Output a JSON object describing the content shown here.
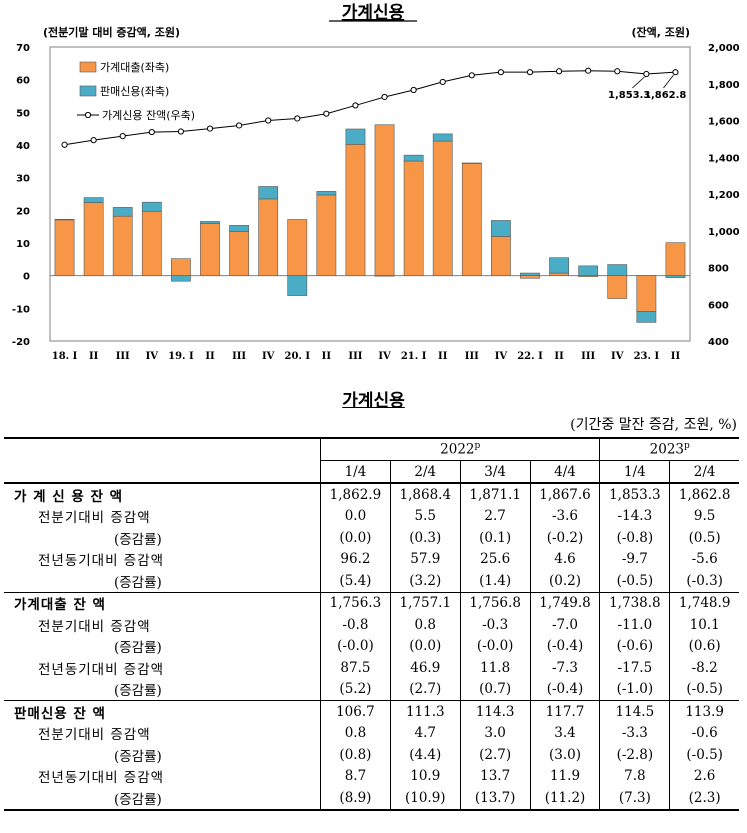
{
  "chart_data": {
    "type": "bar+line",
    "title": "가계신용",
    "left_axis_label": "(전분기말 대비 증감액, 조원)",
    "right_axis_label": "(잔액, 조원)",
    "left_ylim": [
      -20,
      70
    ],
    "left_ticks": [
      "70",
      "60",
      "50",
      "40",
      "30",
      "20",
      "10",
      "0",
      "-10",
      "-20"
    ],
    "right_ylim": [
      400,
      2000
    ],
    "right_ticks": [
      "2,000",
      "1,800",
      "1,600",
      "1,400",
      "1,200",
      "1,000",
      "800",
      "600",
      "400"
    ],
    "categories": [
      "18. I",
      "II",
      "III",
      "IV",
      "19. I",
      "II",
      "III",
      "IV",
      "20. I",
      "II",
      "III",
      "IV",
      "21. I",
      "II",
      "III",
      "IV",
      "22. I",
      "II",
      "III",
      "IV",
      "23. I",
      "II"
    ],
    "series": [
      {
        "name": "가계대출(좌축)",
        "color": "#F79646",
        "values": [
          17.2,
          22.4,
          18.2,
          19.7,
          5.2,
          16.0,
          13.5,
          23.5,
          17.2,
          24.7,
          40.2,
          46.2,
          35.1,
          41.2,
          34.4,
          12.0,
          -0.8,
          0.8,
          -0.3,
          -7.0,
          -11.0,
          10.1
        ]
      },
      {
        "name": "판매신용(좌축)",
        "color": "#4BACC6",
        "values": [
          0.0,
          1.5,
          2.7,
          2.8,
          -1.7,
          0.6,
          1.9,
          3.8,
          -6.1,
          1.1,
          4.7,
          -0.1,
          1.8,
          2.2,
          0.1,
          4.9,
          0.8,
          4.7,
          3.0,
          3.4,
          -3.3,
          -0.6
        ]
      },
      {
        "name": "가계신용 잔액(우축)",
        "color": "#000000",
        "values": [
          1468,
          1493,
          1515,
          1537,
          1540,
          1556,
          1573,
          1600,
          1611,
          1637,
          1682,
          1728,
          1766,
          1810,
          1846,
          1863,
          1863,
          1868,
          1871,
          1868,
          1853,
          1863
        ]
      }
    ],
    "annotations": [
      "1,853.3",
      "1,862.8"
    ],
    "legend_position": "upper-left"
  },
  "table": {
    "title": "가계신용",
    "unit": "(기간중 말잔 증감, 조원, %)",
    "year_headers": [
      {
        "label": "2022",
        "sup": "p"
      },
      {
        "label": "2023",
        "sup": "p"
      }
    ],
    "quarters": [
      "1/4",
      "2/4",
      "3/4",
      "4/4",
      "1/4",
      "2/4"
    ],
    "rows": [
      {
        "label": "가 계 신 용  잔 액",
        "level": 0,
        "values": [
          "1,862.9",
          "1,868.4",
          "1,871.1",
          "1,867.6",
          "1,853.3",
          "1,862.8"
        ]
      },
      {
        "label": "전분기대비 증감액",
        "level": 1,
        "values": [
          "0.0",
          "5.5",
          "2.7",
          "-3.6",
          "-14.3",
          "9.5"
        ]
      },
      {
        "label": "(증감률)",
        "level": 2,
        "values": [
          "(0.0)",
          "(0.3)",
          "(0.1)",
          "(-0.2)",
          "(-0.8)",
          "(0.5)"
        ]
      },
      {
        "label": "전년동기대비 증감액",
        "level": 1,
        "values": [
          "96.2",
          "57.9",
          "25.6",
          "4.6",
          "-9.7",
          "-5.6"
        ]
      },
      {
        "label": "(증감률)",
        "level": 2,
        "values": [
          "(5.4)",
          "(3.2)",
          "(1.4)",
          "(0.2)",
          "(-0.5)",
          "(-0.3)"
        ]
      },
      {
        "label": "가계대출  잔 액",
        "level": 0,
        "values": [
          "1,756.3",
          "1,757.1",
          "1,756.8",
          "1,749.8",
          "1,738.8",
          "1,748.9"
        ]
      },
      {
        "label": "전분기대비 증감액",
        "level": 1,
        "values": [
          "-0.8",
          "0.8",
          "-0.3",
          "-7.0",
          "-11.0",
          "10.1"
        ]
      },
      {
        "label": "(증감률)",
        "level": 2,
        "values": [
          "(-0.0)",
          "(0.0)",
          "(-0.0)",
          "(-0.4)",
          "(-0.6)",
          "(0.6)"
        ]
      },
      {
        "label": "전년동기대비 증감액",
        "level": 1,
        "values": [
          "87.5",
          "46.9",
          "11.8",
          "-7.3",
          "-17.5",
          "-8.2"
        ]
      },
      {
        "label": "(증감률)",
        "level": 2,
        "values": [
          "(5.2)",
          "(2.7)",
          "(0.7)",
          "(-0.4)",
          "(-1.0)",
          "(-0.5)"
        ]
      },
      {
        "label": "판매신용  잔 액",
        "level": 0,
        "values": [
          "106.7",
          "111.3",
          "114.3",
          "117.7",
          "114.5",
          "113.9"
        ]
      },
      {
        "label": "전분기대비 증감액",
        "level": 1,
        "values": [
          "0.8",
          "4.7",
          "3.0",
          "3.4",
          "-3.3",
          "-0.6"
        ]
      },
      {
        "label": "(증감률)",
        "level": 2,
        "values": [
          "(0.8)",
          "(4.4)",
          "(2.7)",
          "(3.0)",
          "(-2.8)",
          "(-0.5)"
        ]
      },
      {
        "label": "전년동기대비 증감액",
        "level": 1,
        "values": [
          "8.7",
          "10.9",
          "13.7",
          "11.9",
          "7.8",
          "2.6"
        ]
      },
      {
        "label": "(증감률)",
        "level": 2,
        "values": [
          "(8.9)",
          "(10.9)",
          "(13.7)",
          "(11.2)",
          "(7.3)",
          "(2.3)"
        ]
      }
    ]
  }
}
